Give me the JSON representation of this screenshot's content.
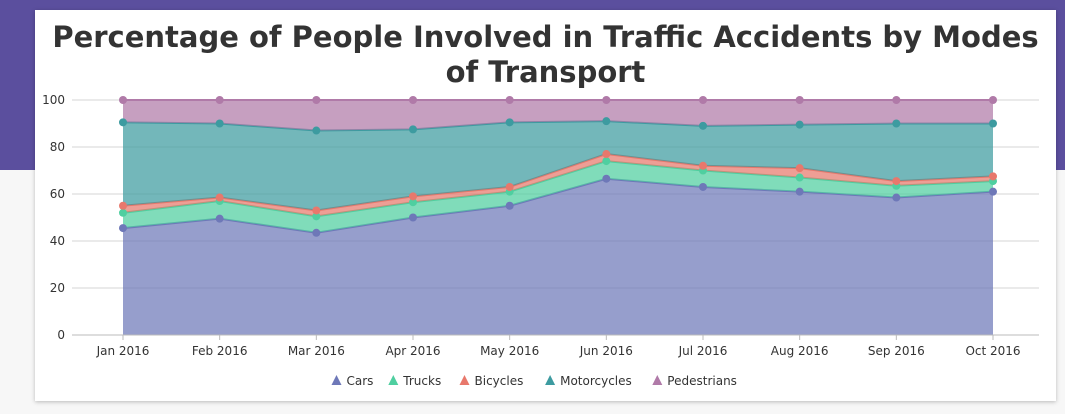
{
  "chart_data": {
    "type": "area",
    "stacked": "100%",
    "title": "Percentage of People Involved in Traffic Accidents by Modes of Transport",
    "xlabel": "",
    "ylabel": "",
    "ylim": [
      0,
      100
    ],
    "yticks": [
      "0",
      "20",
      "40",
      "60",
      "80",
      "100"
    ],
    "categories": [
      "Jan 2016",
      "Feb 2016",
      "Mar 2016",
      "Apr 2016",
      "May 2016",
      "Jun 2016",
      "Jul 2016",
      "Aug 2016",
      "Sep 2016",
      "Oct 2016"
    ],
    "series": [
      {
        "name": "Cars",
        "color": "#6e78b8",
        "values": [
          45.5,
          49.5,
          43.5,
          50,
          55,
          66.5,
          63,
          61,
          58.5,
          61
        ]
      },
      {
        "name": "Trucks",
        "color": "#4fcfa0",
        "values": [
          6.5,
          7.5,
          7,
          6.5,
          6,
          7.5,
          7,
          6,
          5,
          4.5
        ]
      },
      {
        "name": "Bicycles",
        "color": "#e8786c",
        "values": [
          3,
          1.5,
          2.5,
          2.5,
          2,
          3,
          2,
          4,
          2,
          2
        ]
      },
      {
        "name": "Motorcycles",
        "color": "#3d9ba0",
        "values": [
          35.5,
          31.5,
          34,
          28.5,
          27.5,
          14,
          17,
          18.5,
          24.5,
          22.5
        ]
      },
      {
        "name": "Pedestrians",
        "color": "#b07aa8",
        "values": [
          9.5,
          10,
          13,
          12.5,
          9.5,
          9,
          11,
          10.5,
          10,
          10
        ]
      }
    ],
    "grid": true,
    "legend": "bottom-center"
  }
}
